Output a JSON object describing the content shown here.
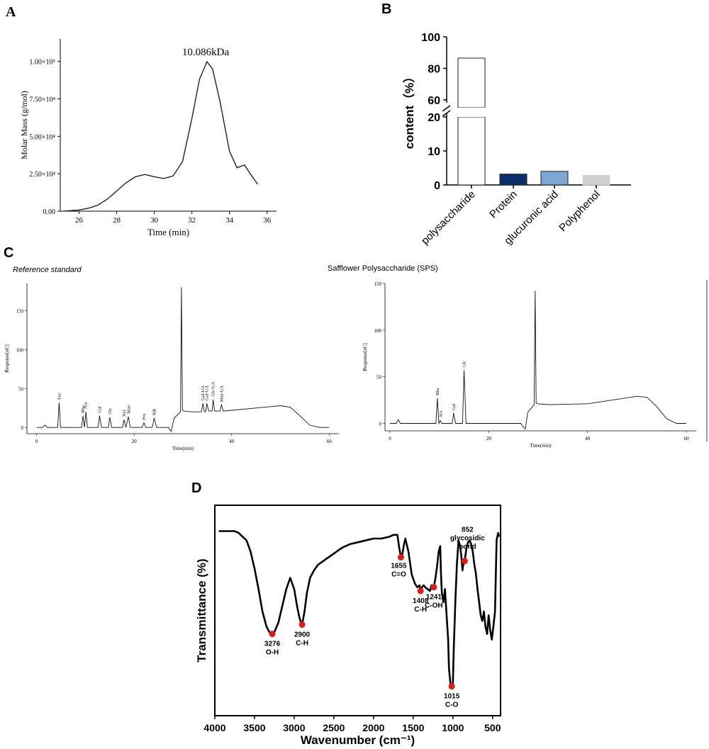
{
  "panels": {
    "a": "A",
    "b": "B",
    "c": "C",
    "d": "D"
  },
  "panel_c": {
    "left_title": "Reference standard",
    "right_title": "Safflower Polysaccharide (SPS)"
  },
  "chart_data": [
    {
      "id": "A",
      "type": "line",
      "xlabel": "Time (min)",
      "ylabel": "Molar Mass (g/mol)",
      "xlim": [
        25,
        36.5
      ],
      "ylim": [
        0,
        115000
      ],
      "xticks": [
        26,
        28,
        30,
        32,
        34,
        36
      ],
      "yticks": [
        {
          "v": 0,
          "label": "0.00"
        },
        {
          "v": 25000,
          "label": "2.50×10⁴"
        },
        {
          "v": 50000,
          "label": "5.00×10⁴"
        },
        {
          "v": 75000,
          "label": "7.50×10⁴"
        },
        {
          "v": 100000,
          "label": "1.00×10⁵"
        }
      ],
      "annotation": "10.086kDa",
      "x": [
        25.2,
        26,
        26.5,
        27,
        27.5,
        28,
        28.5,
        29,
        29.5,
        30,
        30.5,
        31,
        31.5,
        32,
        32.4,
        32.8,
        33.1,
        33.5,
        34,
        34.4,
        34.8,
        35.1,
        35.5
      ],
      "y": [
        0,
        800,
        2000,
        4000,
        8000,
        13500,
        19000,
        23000,
        24500,
        23000,
        21800,
        23500,
        33000,
        62000,
        88000,
        99800,
        95000,
        73000,
        40000,
        29000,
        30800,
        25000,
        18000
      ]
    },
    {
      "id": "B",
      "type": "bar",
      "ylabel": "content（%）",
      "categories": [
        "polysaccharide",
        "Protein",
        "glucuronic acid",
        "Polyphenol"
      ],
      "values": [
        86.5,
        3.2,
        4.0,
        2.8
      ],
      "colors": [
        "#ffffff",
        "#0b2f6b",
        "#7ea6d3",
        "#d0d0d0"
      ],
      "yticks": [
        0,
        10,
        20,
        60,
        80,
        100
      ],
      "axis_break": [
        20,
        55
      ]
    },
    {
      "id": "C-left",
      "type": "line",
      "xlabel": "Time(min)",
      "ylabel": "Response[nC]",
      "xlim": [
        -2,
        62
      ],
      "ylim": [
        -8,
        185
      ],
      "xticks": [
        0,
        20,
        40,
        60
      ],
      "yticks": [
        0,
        50,
        100,
        150
      ],
      "peak_labels": [
        {
          "x": 4.6,
          "label": "Fuc"
        },
        {
          "x": 9.5,
          "label": "Rha"
        },
        {
          "x": 10.0,
          "label": "Ara"
        },
        {
          "x": 12.9,
          "label": "Gal"
        },
        {
          "x": 15.0,
          "label": "Glc"
        },
        {
          "x": 17.9,
          "label": "Xyl"
        },
        {
          "x": 18.9,
          "label": "Man"
        },
        {
          "x": 22.0,
          "label": "Fru"
        },
        {
          "x": 24.1,
          "label": "Rib"
        },
        {
          "x": 34.1,
          "label": "Gal-UA"
        },
        {
          "x": 34.9,
          "label": "Gul-UA"
        },
        {
          "x": 36.2,
          "label": "Glc-UA"
        },
        {
          "x": 37.9,
          "label": "Man-UA"
        }
      ],
      "x": [
        0,
        1.2,
        1.7,
        2.2,
        4.3,
        4.6,
        4.9,
        9.2,
        9.5,
        9.8,
        10.1,
        10.4,
        12.6,
        12.9,
        13.3,
        14.7,
        15.0,
        15.4,
        17.6,
        17.9,
        18.3,
        18.8,
        19.2,
        21.6,
        22.0,
        22.4,
        23.7,
        24.1,
        24.6,
        27.0,
        27.3,
        27.6,
        28.2,
        29.5,
        29.7,
        29.9,
        30.2,
        32,
        33.8,
        34.1,
        34.4,
        34.7,
        34.9,
        35.3,
        36.0,
        36.2,
        36.5,
        37.6,
        37.9,
        38.3,
        40,
        45,
        50,
        52,
        54,
        56,
        58,
        60
      ],
      "y": [
        0,
        0,
        3,
        0,
        0,
        32,
        0,
        0,
        15,
        0,
        20,
        0,
        0,
        15,
        0,
        0,
        13,
        0,
        0,
        10,
        0,
        14,
        0,
        0,
        6,
        0,
        0,
        12,
        0,
        0,
        -3,
        -5,
        12,
        20,
        180,
        22,
        21,
        20,
        20,
        31,
        20,
        21,
        31,
        21,
        21,
        36,
        21,
        21,
        29,
        21,
        22,
        25,
        28,
        26,
        15,
        3,
        0,
        0
      ]
    },
    {
      "id": "C-right",
      "type": "line",
      "xlabel": "Time(min)",
      "ylabel": "Response[nC]",
      "xlim": [
        -1,
        62
      ],
      "ylim": [
        -8,
        150
      ],
      "xticks": [
        0,
        20,
        40,
        60
      ],
      "yticks": [
        0,
        50,
        100,
        150
      ],
      "peak_labels": [
        {
          "x": 9.6,
          "label": "Rha"
        },
        {
          "x": 10.3,
          "label": "Ara"
        },
        {
          "x": 12.9,
          "label": "Gal"
        },
        {
          "x": 15.0,
          "label": "Glc"
        }
      ],
      "x": [
        0,
        1.3,
        1.7,
        2.1,
        9.3,
        9.6,
        9.9,
        10.2,
        10.5,
        12.6,
        12.9,
        13.3,
        14.7,
        15.0,
        15.4,
        26.5,
        27.0,
        27.4,
        27.9,
        29.2,
        29.4,
        29.6,
        29.9,
        32,
        40,
        45,
        50,
        52,
        54,
        56,
        58,
        60
      ],
      "y": [
        0,
        0,
        4,
        0,
        0,
        27,
        0,
        3,
        0,
        0,
        11,
        0,
        0,
        57,
        0,
        0,
        -4,
        -6,
        12,
        20,
        142,
        22,
        21,
        20,
        21,
        25,
        29,
        28,
        18,
        5,
        0,
        0
      ]
    },
    {
      "id": "D",
      "type": "line",
      "xlabel": "Wavenumber (cm⁻¹)",
      "ylabel": "Transmittance (%)",
      "xlim": [
        4000,
        400
      ],
      "xticks": [
        4000,
        3500,
        3000,
        2500,
        2000,
        1500,
        1000,
        500
      ],
      "ylim": [
        0,
        100
      ],
      "annotations": [
        {
          "x": 3276,
          "y": 38,
          "label": "3276",
          "label2": "O-H"
        },
        {
          "x": 2900,
          "y": 43,
          "label": "2900",
          "label2": "C-H"
        },
        {
          "x": 1655,
          "y": 79,
          "label": "1655",
          "label2": "C=O"
        },
        {
          "x": 1408,
          "y": 61,
          "label": "1408",
          "label2": "C-H"
        },
        {
          "x": 1241,
          "y": 63,
          "label": "1241",
          "label2": "C-OH"
        },
        {
          "x": 1015,
          "y": 10,
          "label": "1015",
          "label2": "C-O"
        },
        {
          "x": 852,
          "y": 77,
          "label": "852",
          "label2": "glycosidic bond"
        }
      ],
      "x": [
        3950,
        3850,
        3750,
        3700,
        3650,
        3600,
        3550,
        3500,
        3450,
        3400,
        3350,
        3300,
        3276,
        3250,
        3200,
        3150,
        3100,
        3050,
        3000,
        2960,
        2930,
        2900,
        2870,
        2840,
        2800,
        2750,
        2700,
        2600,
        2500,
        2400,
        2300,
        2200,
        2100,
        2000,
        1900,
        1800,
        1750,
        1700,
        1680,
        1655,
        1640,
        1620,
        1600,
        1560,
        1520,
        1480,
        1450,
        1420,
        1408,
        1390,
        1370,
        1350,
        1320,
        1290,
        1270,
        1241,
        1220,
        1200,
        1180,
        1160,
        1150,
        1140,
        1120,
        1100,
        1080,
        1060,
        1050,
        1040,
        1030,
        1015,
        1000,
        990,
        970,
        950,
        930,
        910,
        895,
        880,
        870,
        852,
        830,
        810,
        790,
        770,
        750,
        730,
        710,
        690,
        670,
        650,
        630,
        610,
        590,
        570,
        550,
        530,
        510,
        490,
        470,
        450,
        430,
        420
      ],
      "y": [
        93,
        93,
        93,
        92,
        90,
        88,
        82,
        73,
        62,
        50,
        42,
        38,
        37,
        39,
        44,
        53,
        62,
        68,
        62,
        52,
        46,
        43,
        50,
        60,
        68,
        72,
        75,
        78,
        81,
        84,
        86,
        87,
        88,
        89,
        89,
        90,
        91,
        91,
        85,
        79,
        80,
        85,
        89,
        82,
        70,
        65,
        63,
        64,
        61,
        63,
        64,
        63,
        62,
        61,
        64,
        63,
        68,
        74,
        82,
        85,
        70,
        60,
        55,
        62,
        48,
        35,
        20,
        15,
        11,
        10,
        12,
        30,
        55,
        75,
        88,
        85,
        80,
        72,
        75,
        77,
        84,
        87,
        88,
        86,
        82,
        75,
        70,
        62,
        55,
        48,
        45,
        50,
        42,
        38,
        48,
        40,
        35,
        42,
        50,
        88,
        92,
        90
      ]
    }
  ]
}
